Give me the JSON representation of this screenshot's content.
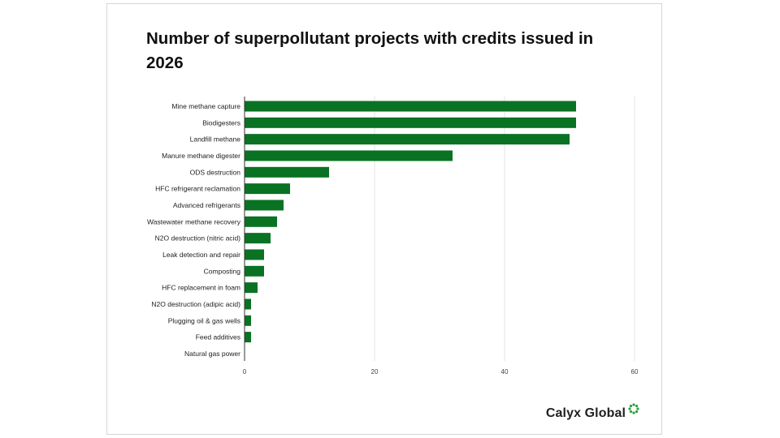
{
  "chart_data": {
    "type": "bar",
    "orientation": "horizontal",
    "title": "Number of superpollutant projects with credits issued in 2026",
    "categories": [
      "Mine methane capture",
      "Biodigesters",
      "Landfill methane",
      "Manure methane digester",
      "ODS destruction",
      "HFC refrigerant reclamation",
      "Advanced refrigerants",
      "Wastewater methane recovery",
      "N2O destruction (nitric acid)",
      "Leak detection and repair",
      "Composting",
      "HFC replacement in foam",
      "N2O destruction (adipic acid)",
      "Plugging oil & gas wells",
      "Feed additives",
      "Natural gas power"
    ],
    "values": [
      51,
      51,
      50,
      32,
      13,
      7,
      6,
      5,
      4,
      3,
      3,
      2,
      1,
      1,
      1,
      0
    ],
    "xlim": [
      0,
      60
    ],
    "xticks": [
      "0",
      "20",
      "40",
      "60"
    ],
    "xlabel": "",
    "ylabel": "",
    "grid": true,
    "bar_color": "#0a7223"
  },
  "brand": {
    "name": "Calyx Global",
    "logo_icon": "ring-dots-icon",
    "logo_color": "#2e9e3a"
  }
}
